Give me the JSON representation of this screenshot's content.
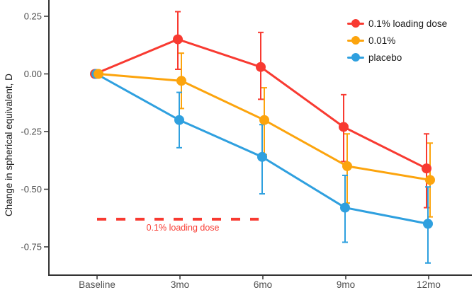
{
  "chart_data": {
    "type": "line",
    "title": "",
    "xlabel": "",
    "ylabel": "Change in spherical equivalent, D",
    "categories": [
      "Baseline",
      "3mo",
      "6mo",
      "9mo",
      "12mo"
    ],
    "ylim": [
      -0.85,
      0.32
    ],
    "grid": false,
    "legend_position": "top-right",
    "yticks": [
      {
        "label": "0.25",
        "value": 0.25
      },
      {
        "label": "0.00",
        "value": 0.0
      },
      {
        "label": "-0.25",
        "value": -0.25
      },
      {
        "label": "-0.50",
        "value": -0.5
      },
      {
        "label": "-0.75",
        "value": -0.75
      }
    ],
    "series": [
      {
        "name": "0.1% loading dose",
        "color": "#F83A31",
        "values": [
          0.0,
          0.15,
          0.03,
          -0.23,
          -0.41
        ],
        "err_low": [
          null,
          0.02,
          -0.11,
          -0.38,
          -0.58
        ],
        "err_high": [
          null,
          0.27,
          0.18,
          -0.09,
          -0.26
        ]
      },
      {
        "name": "0.01%",
        "color": "#FCA40D",
        "values": [
          0.0,
          -0.03,
          -0.2,
          -0.4,
          -0.46
        ],
        "err_low": [
          null,
          -0.15,
          -0.35,
          -0.56,
          -0.62
        ],
        "err_high": [
          null,
          0.09,
          -0.06,
          -0.26,
          -0.3
        ]
      },
      {
        "name": "placebo",
        "color": "#2FA0DF",
        "values": [
          0.0,
          -0.2,
          -0.36,
          -0.58,
          -0.65
        ],
        "err_low": [
          null,
          -0.32,
          -0.52,
          -0.73,
          -0.82
        ],
        "err_high": [
          null,
          -0.08,
          -0.22,
          -0.44,
          -0.49
        ]
      }
    ],
    "annotation": {
      "label": "0.1% loading dose",
      "y": -0.63,
      "x_start_index": 0,
      "x_end_index": 1.95,
      "style": "dashed",
      "color": "#F83A31"
    }
  }
}
